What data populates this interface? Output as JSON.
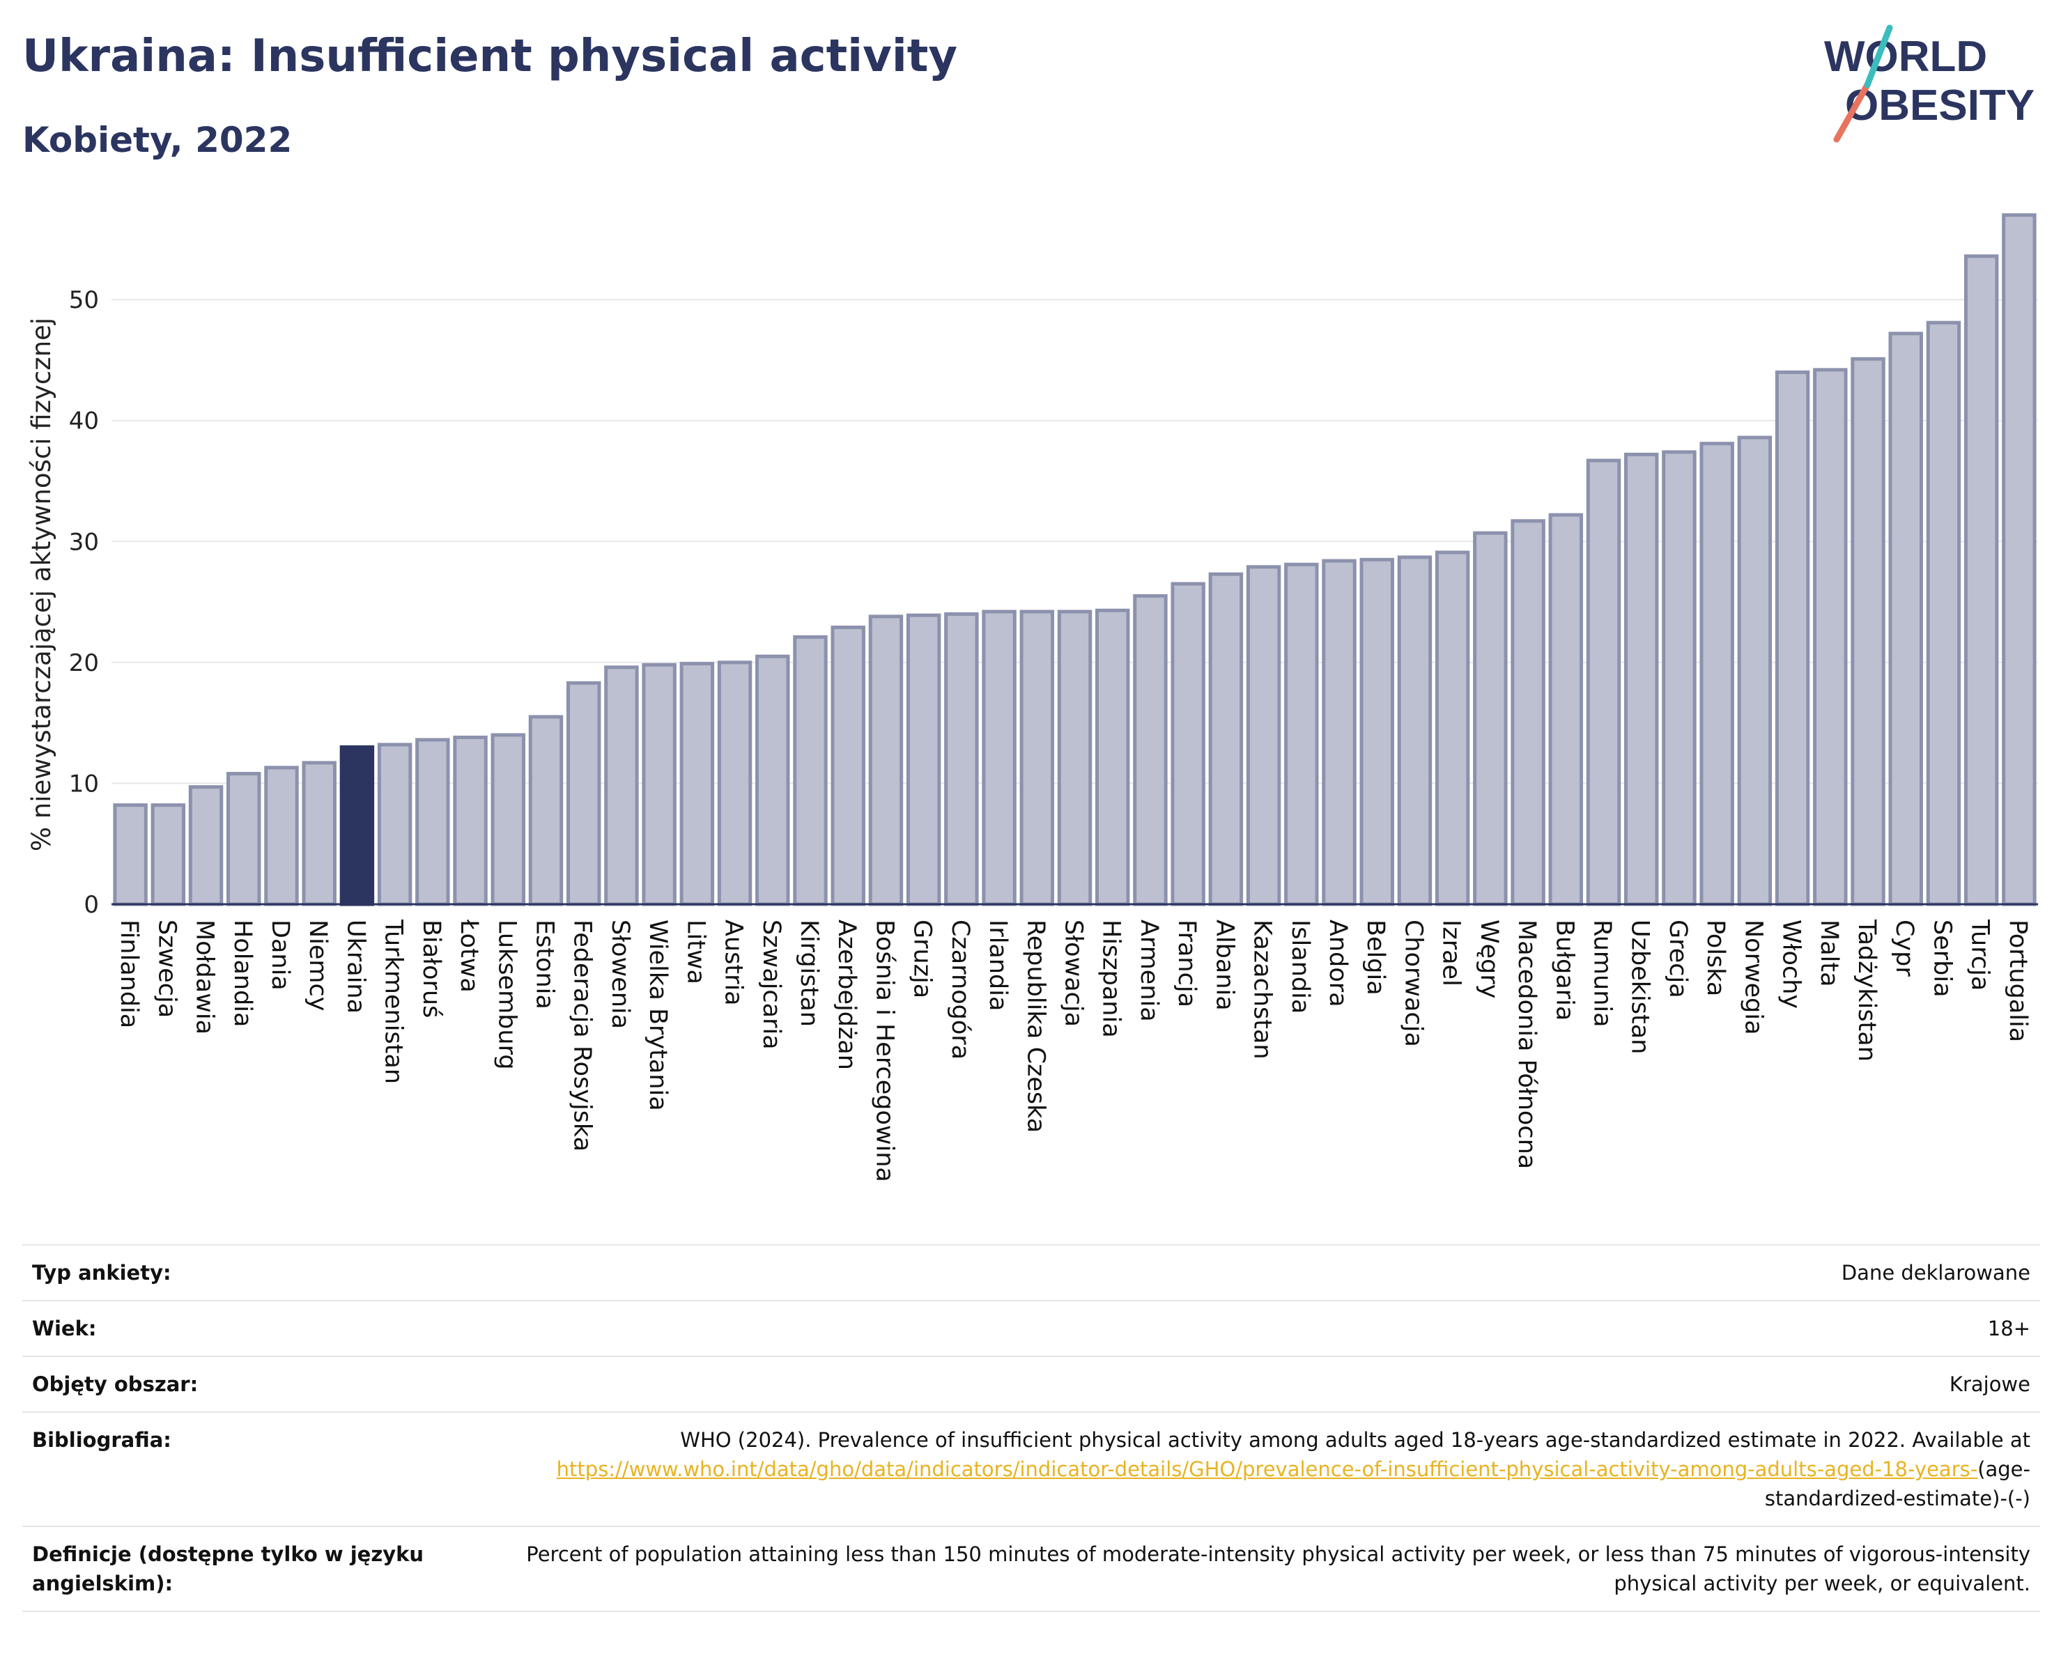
{
  "header": {
    "title": "Ukraina: Insufficient physical activity",
    "subtitle": "Kobiety, 2022"
  },
  "logo": {
    "line1": "WORLD",
    "line2": "OBESITY"
  },
  "colors": {
    "highlight": "#2b3560",
    "bar": "#bcc0d0",
    "bar_border": "#8c92ad",
    "link": "#e8b320"
  },
  "chart_data": {
    "type": "bar",
    "ylabel": "% niewystarczającej aktywności fizycznej",
    "xlabel": "",
    "ylim": [
      0,
      57.5
    ],
    "yticks": [
      0,
      10,
      20,
      30,
      40,
      50
    ],
    "grid": true,
    "highlight": "Ukraina",
    "categories": [
      "Finlandia",
      "Szwecja",
      "Mołdawia",
      "Holandia",
      "Dania",
      "Niemcy",
      "Ukraina",
      "Turkmenistan",
      "Białoruś",
      "Łotwa",
      "Luksemburg",
      "Estonia",
      "Federacja Rosyjska",
      "Słowenia",
      "Wielka Brytania",
      "Litwa",
      "Austria",
      "Szwajcaria",
      "Kirgistan",
      "Azerbejdżan",
      "Bośnia i Hercegowina",
      "Gruzja",
      "Czarnogóra",
      "Irlandia",
      "Republika Czeska",
      "Słowacja",
      "Hiszpania",
      "Armenia",
      "Francja",
      "Albania",
      "Kazachstan",
      "Islandia",
      "Andora",
      "Belgia",
      "Chorwacja",
      "Izrael",
      "Węgry",
      "Macedonia Północna",
      "Bułgaria",
      "Rumunia",
      "Uzbekistan",
      "Grecja",
      "Polska",
      "Norwegia",
      "Włochy",
      "Malta",
      "Tadżykistan",
      "Cypr",
      "Serbia",
      "Turcja",
      "Portugalia"
    ],
    "values": [
      8.2,
      8.2,
      9.7,
      10.8,
      11.3,
      11.7,
      13.0,
      13.2,
      13.6,
      13.8,
      14.0,
      15.5,
      18.3,
      19.6,
      19.8,
      19.9,
      20.0,
      20.5,
      22.1,
      22.9,
      23.8,
      23.9,
      24.0,
      24.2,
      24.2,
      24.2,
      24.3,
      25.5,
      26.5,
      27.3,
      27.9,
      28.1,
      28.4,
      28.5,
      28.7,
      29.1,
      30.7,
      31.7,
      32.2,
      36.7,
      37.2,
      37.4,
      38.1,
      38.6,
      44.0,
      44.2,
      45.1,
      47.2,
      48.1,
      53.6,
      57.0
    ]
  },
  "meta": {
    "survey_type_label": "Typ ankiety:",
    "survey_type_value": "Dane deklarowane",
    "age_label": "Wiek:",
    "age_value": "18+",
    "coverage_label": "Objęty obszar:",
    "coverage_value": "Krajowe",
    "bibliography_label": "Bibliografia:",
    "bibliography_text": "WHO (2024). Prevalence of insufficient physical activity among adults aged 18-years age-standardized estimate in 2022. Available at",
    "bibliography_link": "https://www.who.int/data/gho/data/indicators/indicator-details/GHO/prevalence-of-insufficient-physical-activity-among-adults-aged-18-years-",
    "bibliography_suffix": "(age-standardized-estimate)-(-)",
    "definitions_label": "Definicje (dostępne tylko w języku angielskim):",
    "definitions_text": "Percent of population attaining less than 150 minutes of moderate-intensity physical activity per week, or less than 75 minutes of vigorous-intensity physical activity per week, or equivalent."
  }
}
